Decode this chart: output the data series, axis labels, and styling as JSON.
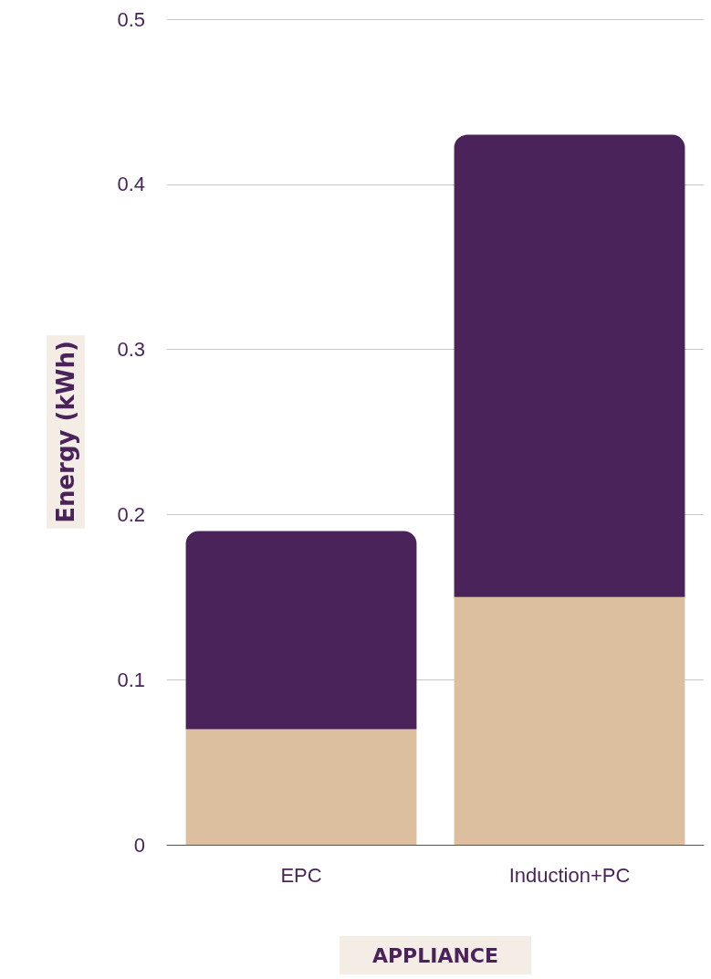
{
  "chart_data": {
    "type": "bar",
    "stacked": true,
    "xlabel": "APPLIANCE",
    "ylabel": "Energy (kWh)",
    "categories": [
      "EPC",
      "Induction+PC"
    ],
    "series": [
      {
        "color": "#dbbf9e",
        "values": [
          0.07,
          0.15
        ]
      },
      {
        "color": "#4a235b",
        "values": [
          0.12,
          0.28
        ]
      }
    ],
    "ylim": [
      0,
      0.5
    ],
    "yticks": [
      0,
      0.1,
      0.2,
      0.3,
      0.4,
      0.5
    ],
    "grid": "y"
  }
}
